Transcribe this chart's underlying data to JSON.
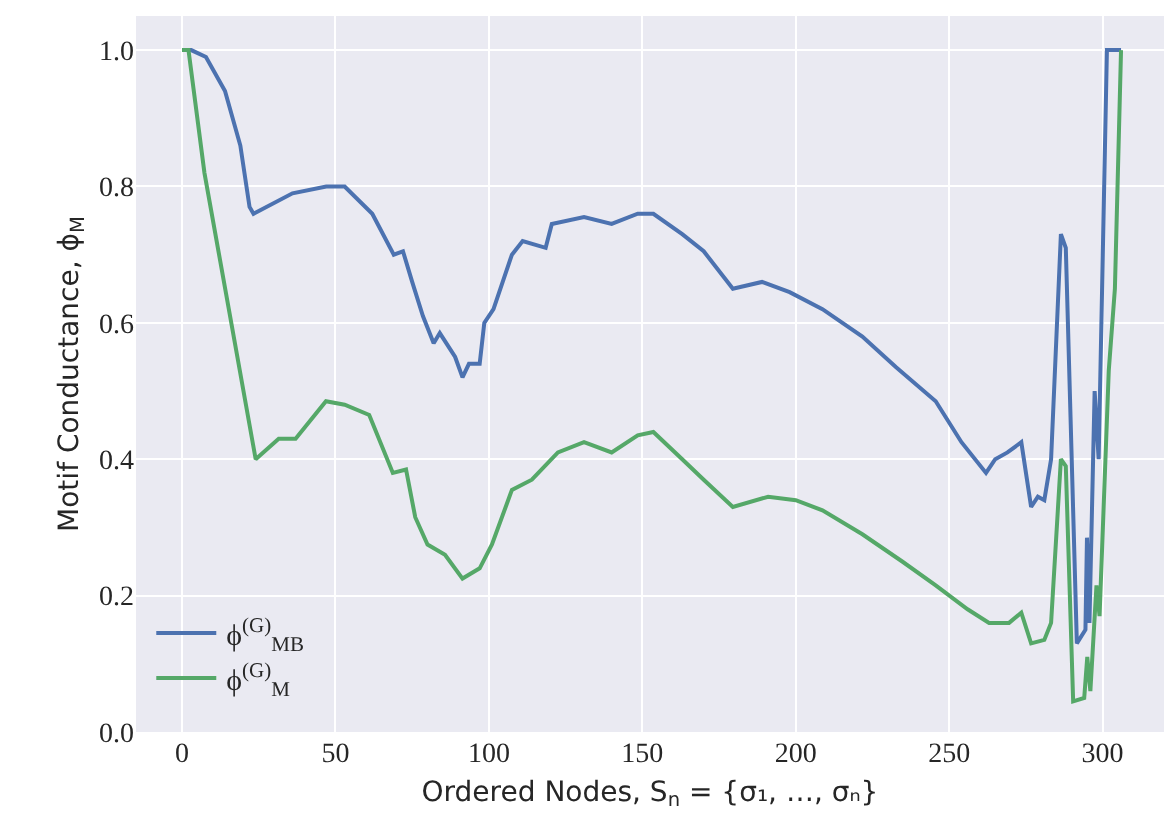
{
  "chart_data": {
    "type": "line",
    "xlabel": "Ordered Nodes, S$_{n}$ = {σ₁, …, σₙ}",
    "ylabel": "Motif Conductance, ϕ$_{M}$",
    "xlim": [
      -15,
      320
    ],
    "xticks": [
      0,
      50,
      100,
      150,
      200,
      250,
      300
    ],
    "ylim": [
      0,
      1.05
    ],
    "yticks": [
      {
        "value": 0,
        "label": "0.0"
      },
      0.2,
      0.4,
      0.6,
      0.8,
      {
        "value": 1,
        "label": "1.0"
      }
    ],
    "grid": true,
    "legend": "bottom left",
    "series": [
      {
        "name": "ϕ$^{(G)}$$_{MB}$",
        "color": "#4c72b0",
        "x": [
          0,
          3,
          7.8,
          14,
          19,
          22,
          23.3,
          36,
          47,
          53,
          62,
          69,
          72,
          75,
          78.5,
          82,
          84,
          89,
          91.4,
          93.5,
          97,
          98.5,
          101.5,
          107.5,
          111,
          118.5,
          120.5,
          131,
          140,
          148.5,
          153.6,
          163,
          170,
          179.5,
          189,
          198,
          208.7,
          221.7,
          232.7,
          245.6,
          254,
          262,
          265,
          269,
          273.5,
          276.7,
          278.9,
          281,
          283.2,
          286.4,
          288,
          291.6,
          294.4,
          294.9,
          295.7,
          297.4,
          298.7,
          301.4,
          306
        ],
        "values": [
          1.0,
          1.0,
          0.99,
          0.94,
          0.86,
          0.77,
          0.76,
          0.79,
          0.8,
          0.8,
          0.76,
          0.7,
          0.705,
          0.66,
          0.61,
          0.57,
          0.585,
          0.55,
          0.52,
          0.54,
          0.54,
          0.6,
          0.62,
          0.7,
          0.72,
          0.71,
          0.745,
          0.755,
          0.745,
          0.76,
          0.76,
          0.73,
          0.705,
          0.65,
          0.66,
          0.645,
          0.62,
          0.58,
          0.535,
          0.485,
          0.425,
          0.38,
          0.4,
          0.41,
          0.425,
          0.33,
          0.345,
          0.34,
          0.4,
          0.73,
          0.71,
          0.13,
          0.15,
          0.285,
          0.16,
          0.5,
          0.4,
          1.0,
          1.0
        ]
      },
      {
        "name": "ϕ$^{(G)}$$_{M}$",
        "color": "#55a868",
        "x": [
          0,
          2.1,
          7.3,
          24,
          31.5,
          37,
          46.9,
          53,
          61,
          68.7,
          73,
          76,
          80,
          85.7,
          91.4,
          97,
          101,
          107.5,
          114,
          122.5,
          131,
          140,
          148.5,
          153.6,
          163,
          170,
          179.5,
          191,
          200,
          208.7,
          221.7,
          234.7,
          245.6,
          256,
          263,
          269.5,
          273.5,
          276.7,
          281,
          283.2,
          286.4,
          288,
          290.4,
          294,
          295,
          296,
          298,
          299,
          302,
          304,
          306
        ],
        "values": [
          1.0,
          1.0,
          0.82,
          0.4,
          0.43,
          0.43,
          0.485,
          0.48,
          0.465,
          0.38,
          0.385,
          0.315,
          0.275,
          0.26,
          0.225,
          0.24,
          0.275,
          0.355,
          0.37,
          0.41,
          0.425,
          0.41,
          0.435,
          0.44,
          0.4,
          0.37,
          0.33,
          0.345,
          0.34,
          0.325,
          0.29,
          0.25,
          0.215,
          0.18,
          0.16,
          0.16,
          0.175,
          0.13,
          0.135,
          0.16,
          0.4,
          0.39,
          0.045,
          0.05,
          0.11,
          0.06,
          0.215,
          0.17,
          0.53,
          0.65,
          1.0
        ]
      }
    ]
  }
}
